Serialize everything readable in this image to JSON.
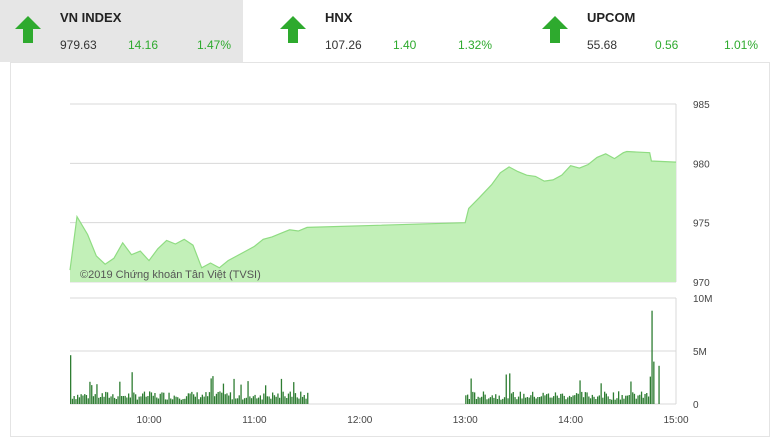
{
  "tickers": [
    {
      "name": "VN INDEX",
      "value": "979.63",
      "change": "14.16",
      "percent": "1.47%",
      "direction": "up",
      "active": true
    },
    {
      "name": "HNX",
      "value": "107.26",
      "change": "1.40",
      "percent": "1.32%",
      "direction": "up",
      "active": false
    },
    {
      "name": "UPCOM",
      "value": "55.68",
      "change": "0.56",
      "percent": "1.01%",
      "direction": "up",
      "active": false
    }
  ],
  "colors": {
    "up": "#2eaa2e",
    "area_fill": "#c2f0b8",
    "area_line": "#8fdc82",
    "volume": "#2e7d32"
  },
  "chart_data": [
    {
      "type": "area",
      "watermark": "©2019 Chứng khoán Tân Việt (TVSI)",
      "ylim": [
        970,
        985
      ],
      "yticks": [
        "985",
        "980",
        "975",
        "970"
      ],
      "xlim": [
        "09:15",
        "15:00"
      ],
      "points": [
        [
          "09:15",
          971.0
        ],
        [
          "09:19",
          975.5
        ],
        [
          "09:25",
          974.0
        ],
        [
          "09:30",
          972.2
        ],
        [
          "09:35",
          971.5
        ],
        [
          "09:40",
          972.0
        ],
        [
          "09:45",
          973.3
        ],
        [
          "09:50",
          972.3
        ],
        [
          "09:55",
          972.6
        ],
        [
          "10:00",
          971.8
        ],
        [
          "10:05",
          972.8
        ],
        [
          "10:10",
          973.5
        ],
        [
          "10:15",
          973.2
        ],
        [
          "10:20",
          973.6
        ],
        [
          "10:25",
          973.1
        ],
        [
          "10:30",
          971.2
        ],
        [
          "10:35",
          971.6
        ],
        [
          "10:40",
          971.2
        ],
        [
          "10:45",
          971.8
        ],
        [
          "10:50",
          972.2
        ],
        [
          "10:55",
          972.6
        ],
        [
          "11:00",
          973.0
        ],
        [
          "11:05",
          973.6
        ],
        [
          "11:10",
          973.8
        ],
        [
          "11:15",
          974.1
        ],
        [
          "11:20",
          974.4
        ],
        [
          "11:25",
          974.3
        ],
        [
          "11:30",
          974.6
        ],
        [
          "13:00",
          975.0
        ],
        [
          "13:02",
          976.2
        ],
        [
          "13:08",
          977.1
        ],
        [
          "13:15",
          978.2
        ],
        [
          "13:20",
          979.2
        ],
        [
          "13:25",
          979.7
        ],
        [
          "13:30",
          979.3
        ],
        [
          "13:35",
          979.0
        ],
        [
          "13:40",
          978.9
        ],
        [
          "13:45",
          978.5
        ],
        [
          "13:50",
          978.6
        ],
        [
          "13:55",
          979.0
        ],
        [
          "14:00",
          979.8
        ],
        [
          "14:05",
          979.6
        ],
        [
          "14:10",
          979.9
        ],
        [
          "14:15",
          980.5
        ],
        [
          "14:20",
          980.8
        ],
        [
          "14:25",
          980.4
        ],
        [
          "14:30",
          980.9
        ],
        [
          "14:32",
          981.0
        ],
        [
          "14:45",
          980.9
        ],
        [
          "14:46",
          980.2
        ],
        [
          "15:00",
          980.1
        ]
      ]
    },
    {
      "type": "bar",
      "name": "volume",
      "ylim": [
        0,
        10000000
      ],
      "yticks": [
        "10M",
        "5M",
        "0"
      ],
      "xticks": [
        "10:00",
        "11:00",
        "12:00",
        "13:00",
        "14:00",
        "15:00"
      ]
    }
  ]
}
